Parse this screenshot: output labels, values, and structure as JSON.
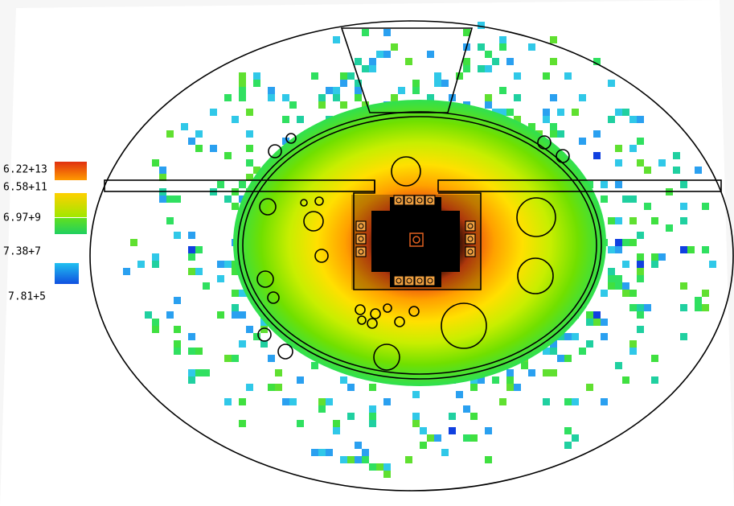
{
  "colorbar": {
    "labels": [
      "6.22+13",
      "6.58+11",
      "6.97+9",
      "7.38+7",
      "7.81+5"
    ]
  }
}
